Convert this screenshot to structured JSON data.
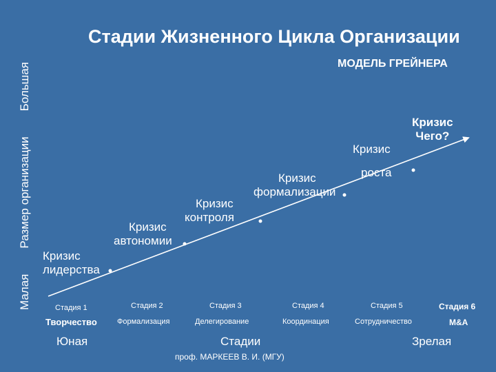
{
  "title": "Стадии Жизненного Цикла Организации",
  "subtitle": "МОДЕЛЬ ГРЕЙНЕРА",
  "y_axis": {
    "label": "Размер организации",
    "low": "Малая",
    "high": "Большая"
  },
  "crises": [
    {
      "line1": "Кризис",
      "line2": "лидерства"
    },
    {
      "line1": "Кризис",
      "line2": "автономии"
    },
    {
      "line1": "Кризис",
      "line2": "контроля"
    },
    {
      "line1": "Кризис",
      "line2": "формализации"
    },
    {
      "line1": "Кризис",
      "line2": "роста"
    },
    {
      "line1": "Кризис",
      "line2": "Чего?"
    }
  ],
  "stages": [
    {
      "label": "Стадия 1",
      "name": "Творчество"
    },
    {
      "label": "Стадия 2",
      "name": "Формализация"
    },
    {
      "label": "Стадия 3",
      "name": "Делегирование"
    },
    {
      "label": "Стадия 4",
      "name": "Координация"
    },
    {
      "label": "Стадия 5",
      "name": "Сотрудничество"
    },
    {
      "label": "Стадия 6",
      "name": "M&A"
    }
  ],
  "x_axis": {
    "young": "Юная",
    "label": "Стадии",
    "mature": "Зрелая"
  },
  "footer": "проф. МАРКЕЕВ В. И. (МГУ)",
  "colors": {
    "background": "#3a6ea5",
    "text": "#ffffff"
  }
}
